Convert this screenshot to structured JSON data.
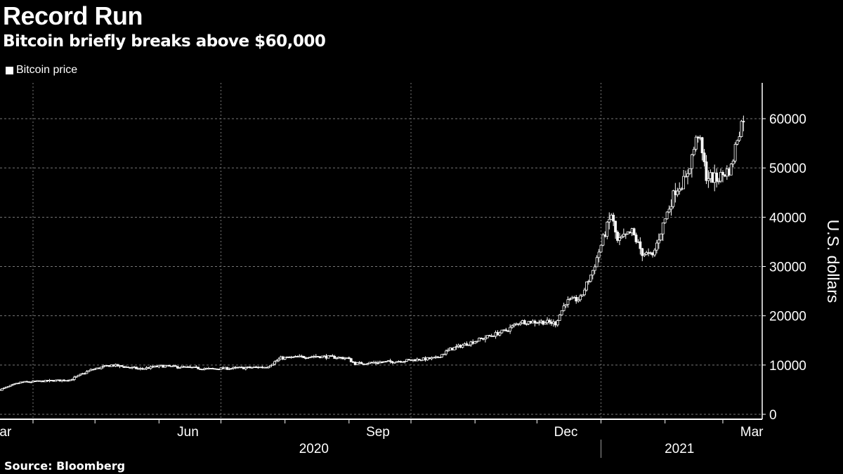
{
  "header": {
    "title": "Record Run",
    "subtitle": "Bitcoin briefly breaks above $60,000"
  },
  "legend": {
    "label": "Bitcoin price",
    "color": "#ffffff"
  },
  "footer": {
    "source": "Source: Bloomberg"
  },
  "chart_data": {
    "type": "line",
    "style": "candlestick",
    "title": "Record Run",
    "subtitle": "Bitcoin briefly breaks above $60,000",
    "xlabel": "",
    "ylabel": "U.S. dollars",
    "ylim": [
      0,
      60000
    ],
    "yticks": [
      "0",
      "10000",
      "20000",
      "30000",
      "40000",
      "50000",
      "60000"
    ],
    "xticks": [
      {
        "label": "Mar",
        "date": "2020-03-16"
      },
      {
        "label": "Jun",
        "date": "2020-06-15"
      },
      {
        "label": "Sep",
        "date": "2020-09-15"
      },
      {
        "label": "Dec",
        "date": "2020-12-15"
      },
      {
        "label": "Mar",
        "date": "2021-03-15"
      }
    ],
    "years": [
      {
        "label": "2020",
        "date": "2020-08-15"
      },
      {
        "label": "2021",
        "date": "2021-02-08"
      }
    ],
    "grid": true,
    "legend_position": "top-left",
    "series": [
      {
        "name": "Bitcoin price",
        "points": [
          [
            "2020-03-16",
            5000
          ],
          [
            "2020-03-26",
            6500
          ],
          [
            "2020-04-19",
            7000
          ],
          [
            "2020-04-29",
            9000
          ],
          [
            "2020-05-09",
            10000
          ],
          [
            "2020-05-23",
            9200
          ],
          [
            "2020-06-02",
            9800
          ],
          [
            "2020-06-26",
            9200
          ],
          [
            "2020-07-23",
            9600
          ],
          [
            "2020-07-30",
            11400
          ],
          [
            "2020-08-16",
            11800
          ],
          [
            "2020-08-31",
            11400
          ],
          [
            "2020-09-04",
            10300
          ],
          [
            "2020-09-22",
            10700
          ],
          [
            "2020-10-13",
            11400
          ],
          [
            "2020-10-20",
            13200
          ],
          [
            "2020-11-02",
            15000
          ],
          [
            "2020-11-16",
            17000
          ],
          [
            "2020-11-23",
            18800
          ],
          [
            "2020-12-03",
            18800
          ],
          [
            "2020-12-10",
            18500
          ],
          [
            "2020-12-15",
            22800
          ],
          [
            "2020-12-22",
            23500
          ],
          [
            "2020-12-28",
            29200
          ],
          [
            "2021-01-02",
            35600
          ],
          [
            "2021-01-06",
            40600
          ],
          [
            "2021-01-09",
            35000
          ],
          [
            "2021-01-16",
            37000
          ],
          [
            "2021-01-21",
            32800
          ],
          [
            "2021-01-26",
            32000
          ],
          [
            "2021-01-31",
            38500
          ],
          [
            "2021-02-06",
            45600
          ],
          [
            "2021-02-11",
            47700
          ],
          [
            "2021-02-17",
            57000
          ],
          [
            "2021-02-21",
            48400
          ],
          [
            "2021-02-26",
            47700
          ],
          [
            "2021-03-05",
            50000
          ],
          [
            "2021-03-08",
            56300
          ],
          [
            "2021-03-11",
            60500
          ],
          [
            "2021-03-12",
            55500
          ]
        ]
      }
    ]
  }
}
